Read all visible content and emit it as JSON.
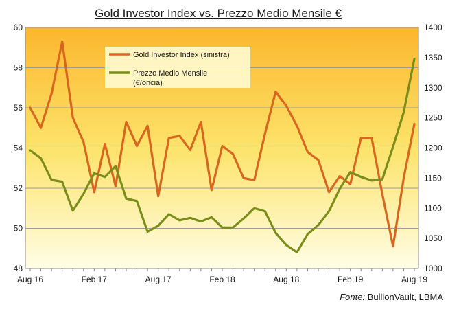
{
  "chart_data": {
    "type": "line",
    "title": "Gold Investor Index vs. Prezzo Medio Mensile €",
    "source_label": "Fonte:",
    "source_value": "BullionVault, LBMA",
    "x_tick_labels": [
      "Aug 16",
      "Feb 17",
      "Aug 17",
      "Feb 18",
      "Aug 18",
      "Feb 19",
      "Aug 19"
    ],
    "x_tick_months": [
      "2016-08",
      "2017-02",
      "2017-08",
      "2018-02",
      "2018-08",
      "2019-02",
      "2019-08"
    ],
    "x": [
      "2016-08",
      "2016-09",
      "2016-10",
      "2016-11",
      "2016-12",
      "2017-01",
      "2017-02",
      "2017-03",
      "2017-04",
      "2017-05",
      "2017-06",
      "2017-07",
      "2017-08",
      "2017-09",
      "2017-10",
      "2017-11",
      "2017-12",
      "2018-01",
      "2018-02",
      "2018-03",
      "2018-04",
      "2018-05",
      "2018-06",
      "2018-07",
      "2018-08",
      "2018-09",
      "2018-10",
      "2018-11",
      "2018-12",
      "2019-01",
      "2019-02",
      "2019-03",
      "2019-04",
      "2019-05",
      "2019-06",
      "2019-07",
      "2019-08"
    ],
    "y_left": {
      "min": 48,
      "max": 60,
      "step": 2,
      "ticks": [
        "48",
        "50",
        "52",
        "54",
        "56",
        "58",
        "60"
      ]
    },
    "y_right": {
      "min": 1000,
      "max": 1400,
      "step": 50,
      "ticks": [
        "1000",
        "1050",
        "1100",
        "1150",
        "1200",
        "1250",
        "1300",
        "1350",
        "1400"
      ]
    },
    "grid": "horizontal",
    "legend_position": "top-center",
    "series": [
      {
        "name": "Gold Investor Index (sinistra)",
        "axis": "left",
        "color": "#d9661f",
        "values": [
          56.0,
          55.0,
          56.7,
          59.3,
          55.5,
          54.3,
          51.8,
          54.2,
          52.1,
          55.3,
          54.1,
          55.1,
          51.6,
          54.5,
          54.6,
          53.9,
          55.3,
          51.9,
          54.1,
          53.7,
          52.5,
          52.4,
          54.7,
          56.8,
          56.1,
          55.1,
          53.8,
          53.4,
          51.8,
          52.6,
          52.2,
          54.5,
          54.5,
          51.7,
          49.1,
          52.5,
          55.2
        ]
      },
      {
        "name": "Prezzo Medio Mensile\n(€/oncia)",
        "axis": "right",
        "color": "#7a8c1a",
        "values": [
          1196,
          1183,
          1147,
          1144,
          1096,
          1124,
          1158,
          1152,
          1170,
          1116,
          1112,
          1061,
          1071,
          1090,
          1080,
          1084,
          1078,
          1085,
          1068,
          1068,
          1083,
          1100,
          1095,
          1059,
          1039,
          1027,
          1057,
          1072,
          1095,
          1132,
          1160,
          1152,
          1146,
          1148,
          1202,
          1259,
          1348
        ]
      }
    ]
  }
}
